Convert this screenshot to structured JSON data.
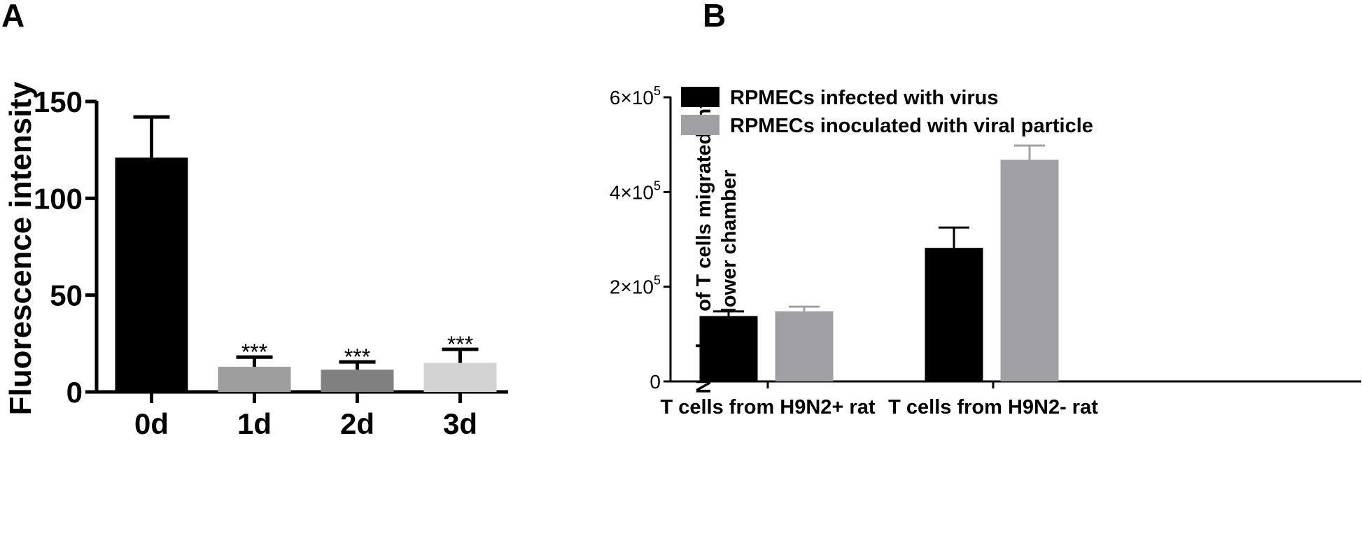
{
  "chart_data": [
    {
      "type": "bar",
      "panel_label": "A",
      "categories": [
        "0d",
        "1d",
        "2d",
        "3d"
      ],
      "values": [
        121,
        13,
        11.5,
        15
      ],
      "errors": [
        21,
        5,
        4,
        7
      ],
      "annotations": [
        "",
        "***",
        "***",
        "***"
      ],
      "colors": [
        "#000000",
        "#9e9e9e",
        "#808080",
        "#d3d3d3"
      ],
      "ylabel": "Fluorescence intensity",
      "xlabel": "",
      "ylim": [
        0,
        150
      ],
      "yticks": [
        0,
        50,
        100,
        150
      ],
      "ytick_labels": [
        "0",
        "50",
        "100",
        "150"
      ],
      "grid": false
    },
    {
      "type": "bar",
      "panel_label": "B",
      "categories": [
        "T cells from H9N2+ rat",
        "T cells from H9N2- rat"
      ],
      "series": [
        {
          "name": "RPMECs infected with virus",
          "color": "#000000",
          "values": [
            138000,
            282000
          ],
          "errors": [
            10000,
            43000
          ]
        },
        {
          "name": "RPMECs inoculated with viral particle",
          "color": "#a0a0a4",
          "values": [
            148000,
            468000
          ],
          "errors": [
            10000,
            30000
          ]
        }
      ],
      "ylabel_lines": [
        "Number of T cells migrated into",
        "lower chamber"
      ],
      "xlabel": "",
      "ylim": [
        0,
        600000
      ],
      "yticks": [
        0,
        200000,
        400000,
        600000
      ],
      "ytick_labels": [
        {
          "mantissa": "0",
          "exponent": ""
        },
        {
          "mantissa": "2×10",
          "exponent": "5"
        },
        {
          "mantissa": "4×10",
          "exponent": "5"
        },
        {
          "mantissa": "6×10",
          "exponent": "5"
        }
      ],
      "legend_position": "top-left",
      "grid": false
    }
  ]
}
